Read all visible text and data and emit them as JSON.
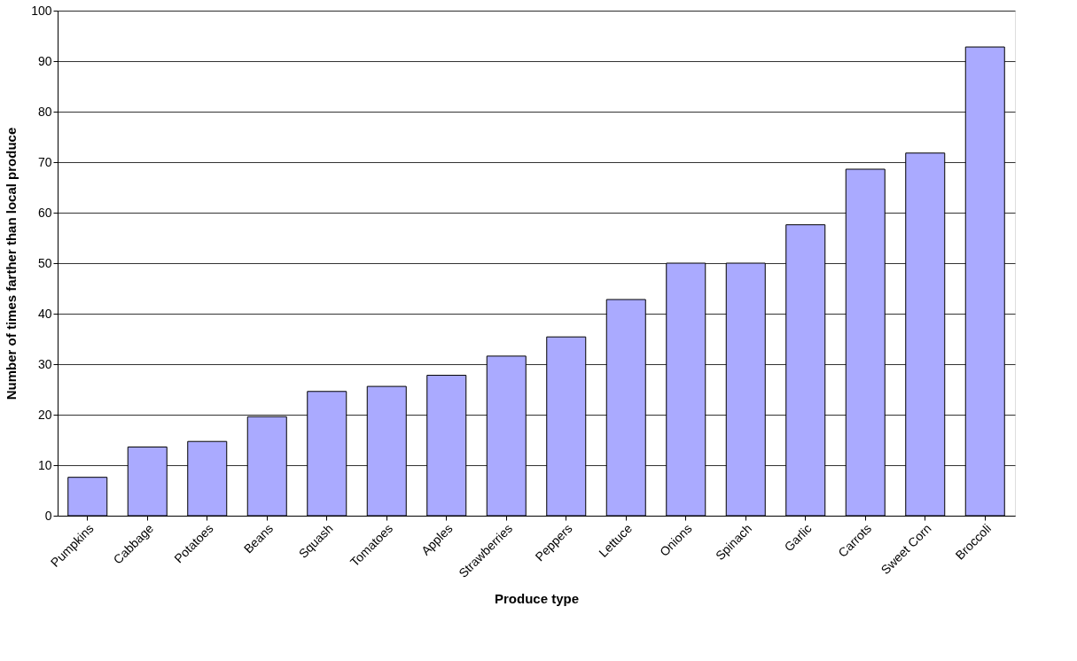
{
  "chart_data": {
    "type": "bar",
    "xlabel": "Produce type",
    "ylabel": "Number of times farther than local produce",
    "categories": [
      "Pumpkins",
      "Cabbage",
      "Potatoes",
      "Beans",
      "Squash",
      "Tomatoes",
      "Apples",
      "Strawberries",
      "Peppers",
      "Lettuce",
      "Onions",
      "Spinach",
      "Garlic",
      "Carrots",
      "Sweet Corn",
      "Broccoli"
    ],
    "values": [
      7.6,
      13.6,
      14.7,
      19.6,
      24.6,
      25.6,
      27.8,
      31.6,
      35.4,
      42.8,
      50,
      50,
      57.6,
      68.6,
      71.8,
      92.8
    ],
    "color": "#aaaaff",
    "ylim": [
      0,
      100
    ],
    "yticks": [
      0,
      10,
      20,
      30,
      40,
      50,
      60,
      70,
      80,
      90,
      100
    ],
    "grid": "y"
  }
}
